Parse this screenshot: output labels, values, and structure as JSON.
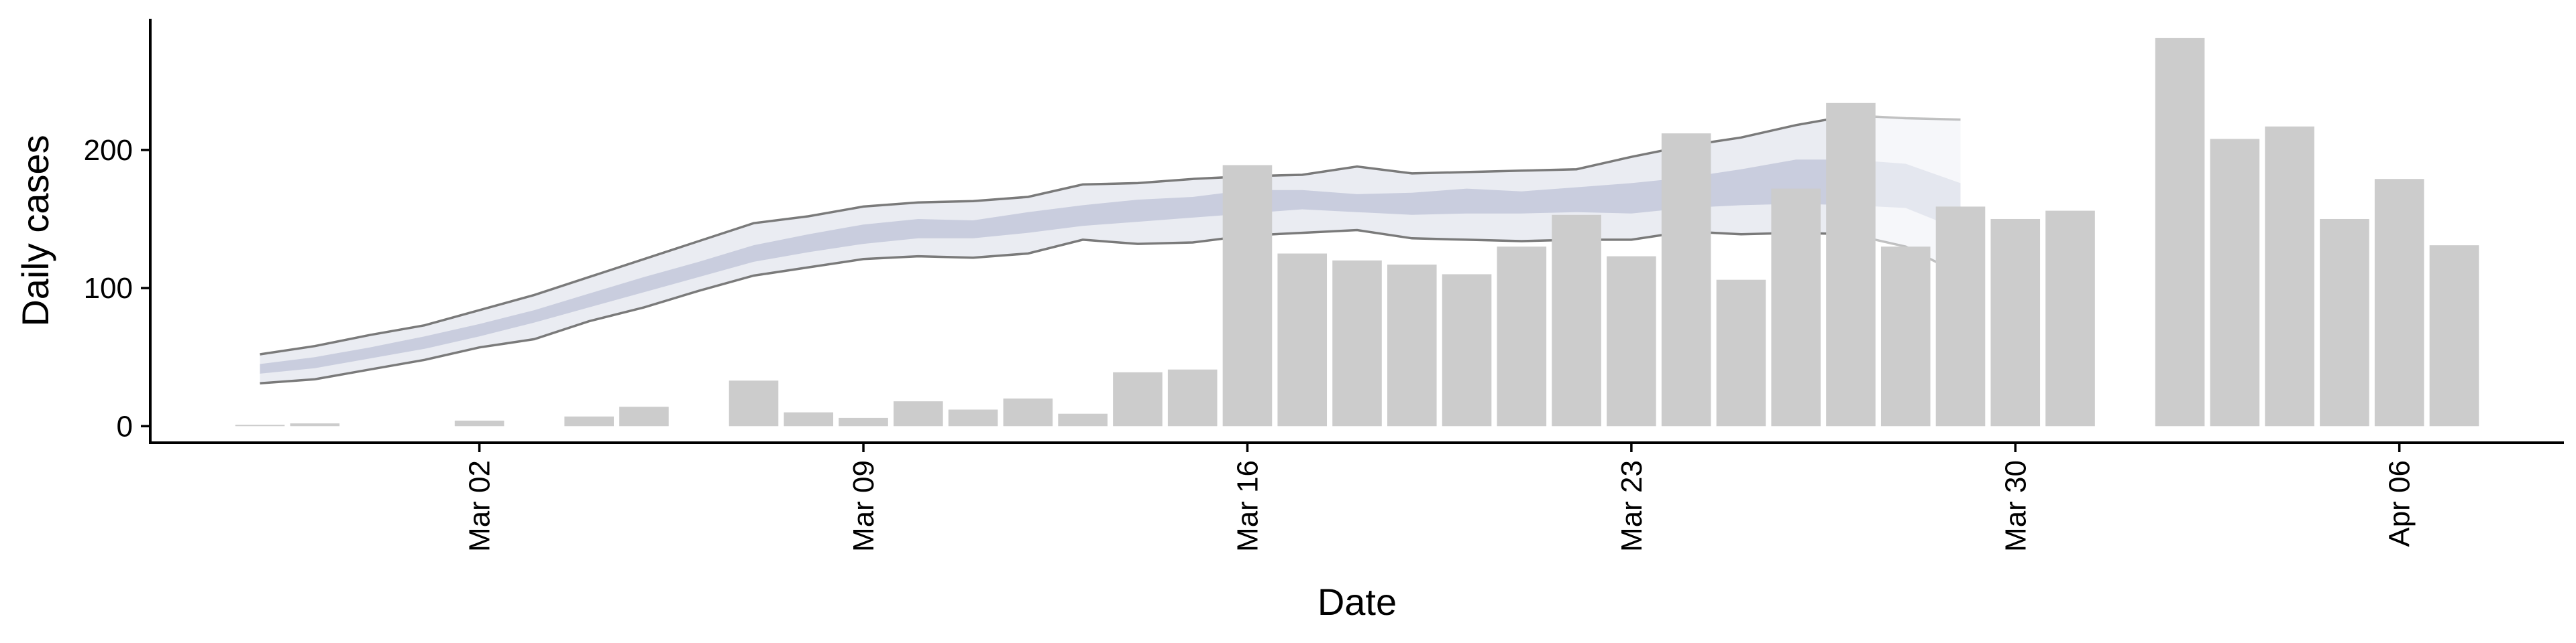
{
  "chart_data": {
    "type": "bar",
    "title": "",
    "xlabel": "Date",
    "ylabel": "Daily cases",
    "x_axis": {
      "type": "date",
      "range": [
        "2020-02-25",
        "2020-04-09"
      ],
      "ticks": [
        {
          "date": "2020-03-02",
          "label": "Mar 02"
        },
        {
          "date": "2020-03-09",
          "label": "Mar 09"
        },
        {
          "date": "2020-03-16",
          "label": "Mar 16"
        },
        {
          "date": "2020-03-23",
          "label": "Mar 23"
        },
        {
          "date": "2020-03-30",
          "label": "Mar 30"
        },
        {
          "date": "2020-04-06",
          "label": "Apr 06"
        }
      ]
    },
    "y_axis": {
      "range": [
        -12,
        295
      ],
      "ticks": [
        {
          "value": 0,
          "label": "0"
        },
        {
          "value": 100,
          "label": "100"
        },
        {
          "value": 200,
          "label": "200"
        }
      ]
    },
    "grid": false,
    "bars": {
      "color": "#cccccc",
      "data": [
        {
          "date": "2020-02-27",
          "value": 1
        },
        {
          "date": "2020-02-28",
          "value": 2
        },
        {
          "date": "2020-03-02",
          "value": 4
        },
        {
          "date": "2020-03-04",
          "value": 7
        },
        {
          "date": "2020-03-05",
          "value": 14
        },
        {
          "date": "2020-03-07",
          "value": 33
        },
        {
          "date": "2020-03-08",
          "value": 10
        },
        {
          "date": "2020-03-09",
          "value": 6
        },
        {
          "date": "2020-03-10",
          "value": 18
        },
        {
          "date": "2020-03-11",
          "value": 12
        },
        {
          "date": "2020-03-12",
          "value": 20
        },
        {
          "date": "2020-03-13",
          "value": 9
        },
        {
          "date": "2020-03-14",
          "value": 39
        },
        {
          "date": "2020-03-15",
          "value": 41
        },
        {
          "date": "2020-03-16",
          "value": 189
        },
        {
          "date": "2020-03-17",
          "value": 125
        },
        {
          "date": "2020-03-18",
          "value": 120
        },
        {
          "date": "2020-03-19",
          "value": 117
        },
        {
          "date": "2020-03-20",
          "value": 110
        },
        {
          "date": "2020-03-21",
          "value": 130
        },
        {
          "date": "2020-03-22",
          "value": 153
        },
        {
          "date": "2020-03-23",
          "value": 123
        },
        {
          "date": "2020-03-24",
          "value": 212
        },
        {
          "date": "2020-03-25",
          "value": 106
        },
        {
          "date": "2020-03-26",
          "value": 172
        },
        {
          "date": "2020-03-27",
          "value": 234
        },
        {
          "date": "2020-03-28",
          "value": 130
        },
        {
          "date": "2020-03-29",
          "value": 159
        },
        {
          "date": "2020-03-30",
          "value": 150
        },
        {
          "date": "2020-03-31",
          "value": 156
        },
        {
          "date": "2020-04-02",
          "value": 281
        },
        {
          "date": "2020-04-03",
          "value": 208
        },
        {
          "date": "2020-04-04",
          "value": 217
        },
        {
          "date": "2020-04-05",
          "value": 150
        },
        {
          "date": "2020-04-06",
          "value": 179
        },
        {
          "date": "2020-04-07",
          "value": 131
        }
      ]
    },
    "bands": {
      "color": "#c3c8db",
      "dates": [
        "2020-02-27",
        "2020-02-28",
        "2020-02-29",
        "2020-03-01",
        "2020-03-02",
        "2020-03-03",
        "2020-03-04",
        "2020-03-05",
        "2020-03-06",
        "2020-03-07",
        "2020-03-08",
        "2020-03-09",
        "2020-03-10",
        "2020-03-11",
        "2020-03-12",
        "2020-03-13",
        "2020-03-14",
        "2020-03-15",
        "2020-03-16",
        "2020-03-17",
        "2020-03-18",
        "2020-03-19",
        "2020-03-20",
        "2020-03-21",
        "2020-03-22",
        "2020-03-23",
        "2020-03-24",
        "2020-03-25",
        "2020-03-26",
        "2020-03-27",
        "2020-03-28",
        "2020-03-29"
      ],
      "outer_upper": [
        52,
        58,
        66,
        73,
        84,
        95,
        108,
        121,
        134,
        147,
        152,
        159,
        162,
        163,
        166,
        175,
        176,
        179,
        181,
        182,
        188,
        183,
        184,
        185,
        186,
        195,
        203,
        209,
        218,
        225,
        223,
        222
      ],
      "outer_lower": [
        31,
        34,
        41,
        48,
        57,
        63,
        76,
        86,
        98,
        109,
        115,
        121,
        123,
        122,
        125,
        135,
        132,
        133,
        138,
        140,
        142,
        136,
        135,
        134,
        135,
        135,
        141,
        139,
        140,
        139,
        130,
        110
      ],
      "inner_upper": [
        45,
        50,
        57,
        65,
        74,
        84,
        96,
        108,
        119,
        131,
        139,
        146,
        150,
        149,
        155,
        160,
        164,
        166,
        171,
        171,
        168,
        169,
        172,
        170,
        173,
        176,
        180,
        186,
        193,
        193,
        190,
        176
      ],
      "inner_lower": [
        38,
        42,
        49,
        56,
        65,
        75,
        86,
        97,
        108,
        119,
        126,
        132,
        136,
        136,
        140,
        145,
        148,
        151,
        154,
        157,
        155,
        153,
        154,
        154,
        155,
        154,
        158,
        160,
        161,
        160,
        158,
        142
      ],
      "late_fade_from": "2020-03-27"
    }
  }
}
